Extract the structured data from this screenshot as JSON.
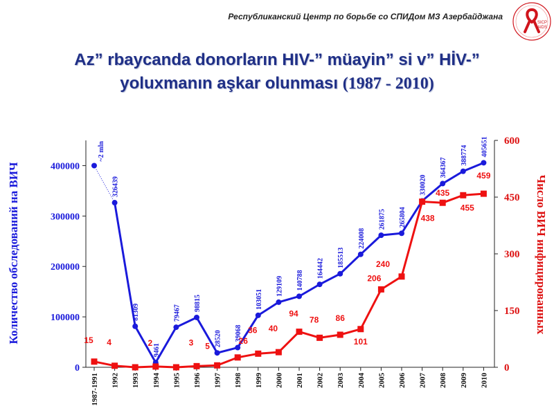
{
  "header": {
    "org": "Республиканский Центр по борьбе со СПИДом МЗ Азербайджана"
  },
  "logo": {
    "text_top": "SICP",
    "text_bottom": "AIDS",
    "ribbon_color": "#d0141c"
  },
  "title": {
    "line1": "Az” rbaycanda donorların HIV-”  müayin” si v”  HİV-”",
    "line2": "yoluxmanın aşkar olunması",
    "years": "(1987 - 2010)"
  },
  "chart_data": {
    "type": "line",
    "categories": [
      "1987-1991",
      "1992",
      "1993",
      "1994",
      "1995",
      "1996",
      "1997",
      "1998",
      "1999",
      "2000",
      "2001",
      "2002",
      "2003",
      "2004",
      "2005",
      "2006",
      "2007",
      "2008",
      "2009",
      "2010"
    ],
    "y_left": {
      "label": "Количество обследований на ВИЧ",
      "ticks": [
        "0",
        "100000",
        "200000",
        "300000",
        "400000"
      ],
      "range": [
        0,
        450000
      ],
      "color": "#1a1adb"
    },
    "y_right": {
      "label": "Число ВИЧ инфицированных",
      "ticks": [
        "0",
        "150",
        "300",
        "450",
        "600"
      ],
      "range": [
        0,
        600
      ],
      "color": "#dd1111"
    },
    "series": [
      {
        "axis": "left",
        "color": "#1a1adb",
        "marker": "circle",
        "values": [
          400000,
          326439,
          81309,
          9461,
          79467,
          98815,
          28520,
          39068,
          103051,
          129109,
          140788,
          164442,
          185513,
          224008,
          261875,
          265804,
          330020,
          364367,
          388774,
          405651
        ],
        "labels": [
          "~2 mln",
          "326439",
          "81309",
          "9461",
          "79467",
          "98815",
          "28520",
          "39068",
          "103051",
          "129109",
          "140788",
          "164442",
          "185513",
          "224008",
          "261875",
          "265804",
          "330020",
          "364367",
          "388774",
          "405651"
        ]
      },
      {
        "axis": "right",
        "color": "#ee1111",
        "marker": "square",
        "values": [
          15,
          4,
          0,
          2,
          0,
          3,
          5,
          26,
          36,
          40,
          94,
          78,
          86,
          101,
          206,
          240,
          438,
          435,
          455,
          459
        ],
        "labels": [
          "15",
          "4",
          "",
          "2",
          "",
          "3",
          "5",
          "26",
          "36",
          "40",
          "94",
          "78",
          "86",
          "101",
          "206",
          "240",
          "438",
          "435",
          "455",
          "459"
        ]
      }
    ],
    "grid": false,
    "legend": "none"
  }
}
